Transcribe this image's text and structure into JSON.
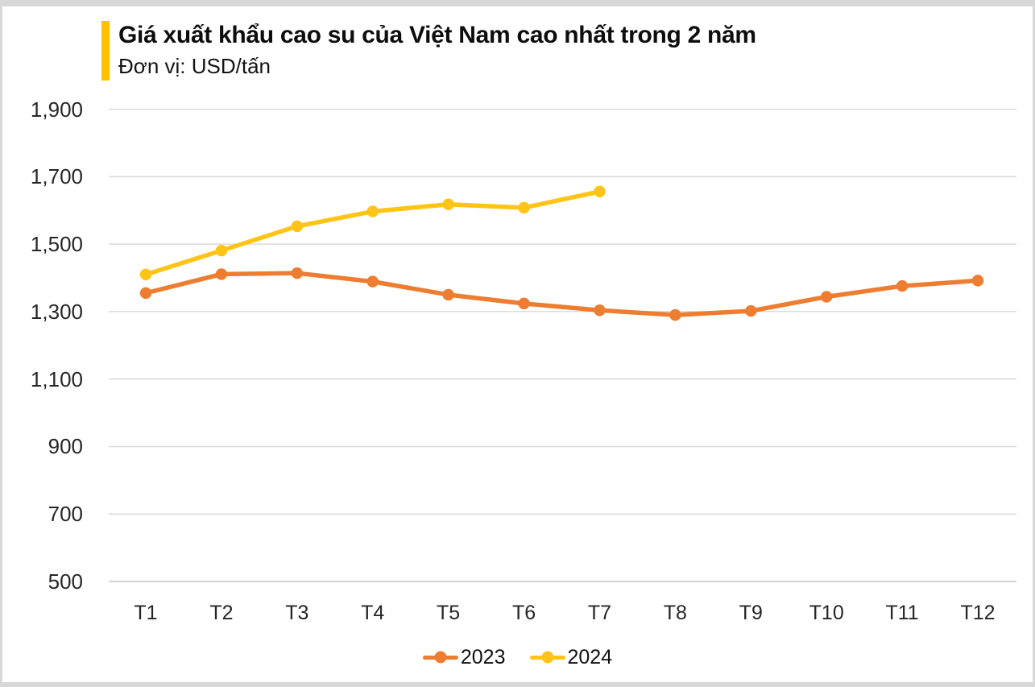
{
  "chart_data": {
    "type": "line",
    "title": "Giá xuất khẩu cao su của Việt Nam cao nhất trong 2 năm",
    "subtitle": "Đơn vị: USD/tấn",
    "unit": "USD/tấn",
    "categories": [
      "T1",
      "T2",
      "T3",
      "T4",
      "T5",
      "T6",
      "T7",
      "T8",
      "T9",
      "T10",
      "T11",
      "T12"
    ],
    "series": [
      {
        "name": "2023",
        "color": "#ED7D31",
        "values": [
          1355,
          1411,
          1414,
          1389,
          1350,
          1324,
          1304,
          1290,
          1302,
          1344,
          1376,
          1392
        ]
      },
      {
        "name": "2024",
        "color": "#FFC415",
        "values": [
          1410,
          1481,
          1553,
          1597,
          1618,
          1608,
          1656
        ]
      }
    ],
    "ylim": [
      500,
      1900
    ],
    "yticks": [
      500,
      700,
      900,
      1100,
      1300,
      1500,
      1700,
      1900
    ],
    "grid": "horizontal-only",
    "legend_position": "bottom-center"
  },
  "colors": {
    "accent_bar": "#FFC000",
    "gridline": "#D9D9D9",
    "axis_line": "#C6C6C6",
    "tick_text": "#262626",
    "title_text": "#0D0D0D"
  }
}
